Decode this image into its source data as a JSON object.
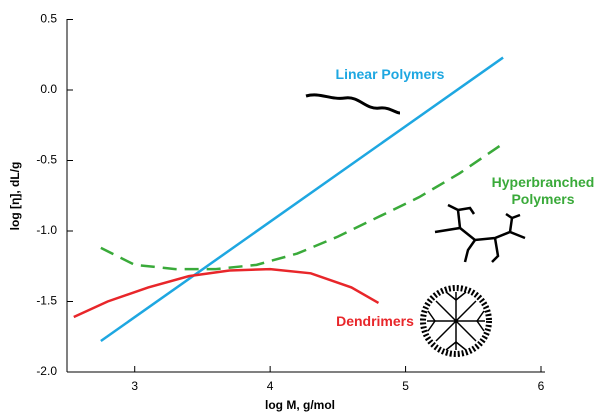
{
  "chart_data": {
    "type": "line",
    "x_label": "log M, g/mol",
    "y_label": "log [η], dL/g",
    "xlim": [
      2.5,
      6
    ],
    "ylim": [
      -2,
      0.5
    ],
    "xticks": [
      3,
      4,
      5,
      6
    ],
    "yticks": [
      {
        "value": 0.5,
        "label": "0.5"
      },
      {
        "value": 0,
        "label": "0.0"
      },
      {
        "value": -0.5,
        "label": "-0.5"
      },
      {
        "value": -1,
        "label": "-1.0"
      },
      {
        "value": -1.5,
        "label": "-1.5"
      },
      {
        "value": -2,
        "label": "-2.0"
      }
    ],
    "series": [
      {
        "name": "Linear Polymers",
        "color": "#1ea7e1",
        "dashed": false,
        "x": [
          2.75,
          5.72
        ],
        "values": [
          -1.78,
          0.23
        ]
      },
      {
        "name": "Hyperbranched Polymers",
        "color": "#3aaa3a",
        "dashed": true,
        "x": [
          2.75,
          3.0,
          3.3,
          3.6,
          3.9,
          4.2,
          4.5,
          4.8,
          5.1,
          5.4,
          5.72
        ],
        "values": [
          -1.12,
          -1.24,
          -1.27,
          -1.27,
          -1.24,
          -1.16,
          -1.04,
          -0.9,
          -0.76,
          -0.59,
          -0.38
        ]
      },
      {
        "name": "Dendrimers",
        "color": "#e8262a",
        "dashed": false,
        "x": [
          2.55,
          2.8,
          3.1,
          3.4,
          3.7,
          4.0,
          4.3,
          4.6,
          4.8
        ],
        "values": [
          -1.61,
          -1.5,
          -1.4,
          -1.32,
          -1.28,
          -1.27,
          -1.3,
          -1.4,
          -1.51
        ]
      }
    ]
  }
}
